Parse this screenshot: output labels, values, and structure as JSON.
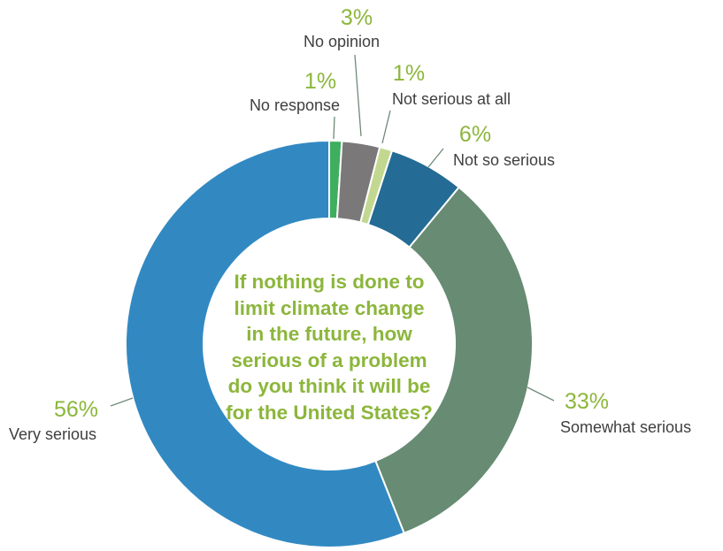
{
  "chart_data": {
    "type": "pie",
    "title": "If nothing is done to limit climate change in the future, how serious of a problem do you think it will be for the United States?",
    "categories": [
      "No response",
      "No opinion",
      "Not serious at all",
      "Not so serious",
      "Somewhat serious",
      "Very serious"
    ],
    "values": [
      1,
      3,
      1,
      6,
      33,
      56
    ],
    "value_labels": [
      "1%",
      "3%",
      "1%",
      "6%",
      "33%",
      "56%"
    ],
    "colors": [
      "#3fae5e",
      "#7a7878",
      "#c2d890",
      "#246b95",
      "#678b73",
      "#3289c2"
    ],
    "style": "donut"
  }
}
